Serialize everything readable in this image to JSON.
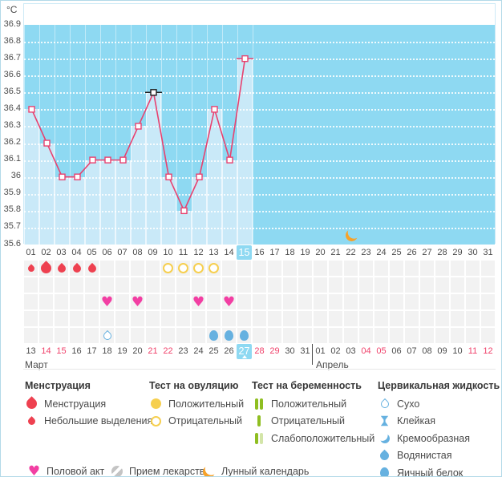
{
  "unit_label": "°C",
  "chart_data": {
    "type": "line",
    "title": "",
    "ylabel": "°C",
    "ylim": [
      35.6,
      36.9
    ],
    "y_tick_step": 0.1,
    "grid": "dotted-white-horizontal",
    "categories": [
      "01",
      "02",
      "03",
      "04",
      "05",
      "06",
      "07",
      "08",
      "09",
      "10",
      "11",
      "12",
      "13",
      "14",
      "15",
      "16",
      "17",
      "18",
      "19",
      "20",
      "21",
      "22",
      "23",
      "24",
      "25",
      "26",
      "27",
      "28",
      "29",
      "30",
      "31"
    ],
    "series": [
      {
        "name": "basal-temperature",
        "values": [
          36.4,
          36.2,
          36.0,
          36.0,
          36.1,
          36.1,
          36.1,
          36.3,
          36.5,
          36.0,
          35.8,
          36.0,
          36.4,
          36.1,
          36.7,
          null,
          null,
          null,
          null,
          null,
          null,
          null,
          null,
          null,
          null,
          null,
          null,
          null,
          null,
          null,
          null
        ]
      }
    ],
    "special_marker_day": 9,
    "last_point_day": 15,
    "selected_cycle_day": "15"
  },
  "events": {
    "menstruation": [
      {
        "day": 1,
        "size": "small"
      },
      {
        "day": 2,
        "size": "large"
      },
      {
        "day": 3,
        "size": "medium"
      },
      {
        "day": 4,
        "size": "medium"
      },
      {
        "day": 5,
        "size": "medium"
      }
    ],
    "ovulation_tests": [
      {
        "day": 10,
        "result": "negative"
      },
      {
        "day": 11,
        "result": "negative"
      },
      {
        "day": 12,
        "result": "negative"
      },
      {
        "day": 13,
        "result": "negative"
      }
    ],
    "intercourse_days": [
      6,
      8,
      12,
      14
    ],
    "cervical_fluid": [
      {
        "day": 6,
        "type": "dry"
      },
      {
        "day": 13,
        "type": "egg_white"
      },
      {
        "day": 14,
        "type": "egg_white"
      },
      {
        "day": 15,
        "type": "egg_white"
      }
    ],
    "lunar_calendar_day": 22
  },
  "calendar": {
    "months": [
      {
        "name": "Март",
        "start_index": 0
      },
      {
        "name": "Апрель",
        "start_index": 19
      }
    ],
    "selected_date": "27",
    "dates": [
      {
        "label": "13",
        "weekend": false
      },
      {
        "label": "14",
        "weekend": true
      },
      {
        "label": "15",
        "weekend": true
      },
      {
        "label": "16",
        "weekend": false
      },
      {
        "label": "17",
        "weekend": false
      },
      {
        "label": "18",
        "weekend": false
      },
      {
        "label": "19",
        "weekend": false
      },
      {
        "label": "20",
        "weekend": false
      },
      {
        "label": "21",
        "weekend": true
      },
      {
        "label": "22",
        "weekend": true
      },
      {
        "label": "23",
        "weekend": false
      },
      {
        "label": "24",
        "weekend": false
      },
      {
        "label": "25",
        "weekend": false
      },
      {
        "label": "26",
        "weekend": false
      },
      {
        "label": "27",
        "weekend": false
      },
      {
        "label": "28",
        "weekend": true
      },
      {
        "label": "29",
        "weekend": true
      },
      {
        "label": "30",
        "weekend": false
      },
      {
        "label": "31",
        "weekend": false
      },
      {
        "label": "01",
        "weekend": false
      },
      {
        "label": "02",
        "weekend": false
      },
      {
        "label": "03",
        "weekend": false
      },
      {
        "label": "04",
        "weekend": true
      },
      {
        "label": "05",
        "weekend": true
      },
      {
        "label": "06",
        "weekend": false
      },
      {
        "label": "07",
        "weekend": false
      },
      {
        "label": "08",
        "weekend": false
      },
      {
        "label": "09",
        "weekend": false
      },
      {
        "label": "10",
        "weekend": false
      },
      {
        "label": "11",
        "weekend": true
      },
      {
        "label": "12",
        "weekend": true
      }
    ]
  },
  "legend": {
    "groups": [
      {
        "title": "Менструация",
        "items": [
          {
            "icon": "drop-red-large",
            "label": "Менструация"
          },
          {
            "icon": "drop-red-small",
            "label": "Небольшие выделения"
          }
        ]
      },
      {
        "title": "Тест на овуляцию",
        "items": [
          {
            "icon": "circle-yellow-filled",
            "label": "Положительный"
          },
          {
            "icon": "circle-yellow-outline",
            "label": "Отрицательный"
          }
        ]
      },
      {
        "title": "Тест на беременность",
        "items": [
          {
            "icon": "test-positive",
            "label": "Положительный"
          },
          {
            "icon": "test-negative",
            "label": "Отрицательный"
          },
          {
            "icon": "test-weak-positive",
            "label": "Слабоположительный"
          }
        ]
      },
      {
        "title": "Цервикальная жидкость",
        "items": [
          {
            "icon": "fluid-dry",
            "label": "Сухо"
          },
          {
            "icon": "fluid-sticky",
            "label": "Клейкая"
          },
          {
            "icon": "fluid-creamy",
            "label": "Кремообразная"
          },
          {
            "icon": "fluid-watery",
            "label": "Водянистая"
          },
          {
            "icon": "fluid-eggwhite",
            "label": "Яичный белок"
          }
        ]
      }
    ],
    "extra_row": [
      {
        "icon": "heart",
        "label": "Половой акт"
      },
      {
        "icon": "pill",
        "label": "Прием лекарств"
      },
      {
        "icon": "moon",
        "label": "Лунный календарь"
      }
    ]
  },
  "colors": {
    "chart_background": "#8ed9f2",
    "bar_fill": "#c9e9f8",
    "temperature_line": "#e8416f",
    "special_marker": "#1c1c1c",
    "highlight_blue": "#8ed9f2",
    "weekend_text": "#f0426b",
    "menstruation_red": "#ee4150",
    "ovulation_yellow": "#f6cf4f",
    "intercourse_pink": "#f23fa3",
    "cervical_blue": "#66b1e0",
    "pregnancy_green": "#8fbe21",
    "pregnancy_green_light": "#d3e5a8",
    "moon_orange": "#f7a229",
    "medication_gray": "#c4c4c4"
  }
}
